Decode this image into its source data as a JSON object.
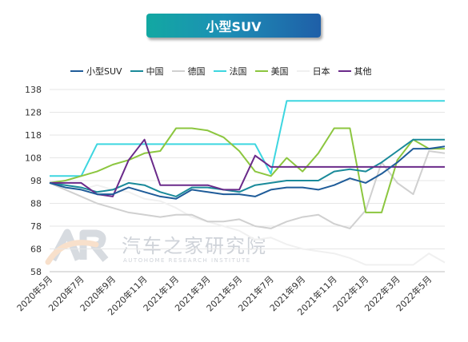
{
  "chart_data": {
    "type": "line",
    "title": "小型SUV",
    "ylim": [
      58,
      138
    ],
    "yticks": [
      58,
      68,
      78,
      88,
      98,
      108,
      118,
      128,
      138
    ],
    "categories": [
      "2020年5月",
      "2020年6月",
      "2020年7月",
      "2020年8月",
      "2020年9月",
      "2020年10月",
      "2020年11月",
      "2020年12月",
      "2021年1月",
      "2021年2月",
      "2021年3月",
      "2021年4月",
      "2021年5月",
      "2021年6月",
      "2021年7月",
      "2021年8月",
      "2021年9月",
      "2021年10月",
      "2021年11月",
      "2021年12月",
      "2022年1月",
      "2022年2月",
      "2022年3月",
      "2022年4月",
      "2022年5月",
      "2022年6月"
    ],
    "xtick_labels": [
      "2020年5月",
      "2020年7月",
      "2020年9月",
      "2020年11月",
      "2021年1月",
      "2021年3月",
      "2021年5月",
      "2021年7月",
      "2021年9月",
      "2021年11月",
      "2022年1月",
      "2022年3月",
      "2022年5月"
    ],
    "xtick_indices": [
      0,
      2,
      4,
      6,
      8,
      10,
      12,
      14,
      16,
      18,
      20,
      22,
      24
    ],
    "legend_position": "top",
    "series": [
      {
        "name": "小型SUV",
        "color": "#1f5c99",
        "values": [
          97,
          95,
          94,
          92,
          92,
          95,
          93,
          91,
          90,
          94,
          93,
          92,
          92,
          91,
          94,
          95,
          95,
          94,
          96,
          99,
          97,
          101,
          106,
          112,
          112,
          113
        ]
      },
      {
        "name": "中国",
        "color": "#1a8a9a",
        "values": [
          97,
          96,
          95,
          93,
          94,
          97,
          96,
          93,
          91,
          95,
          95,
          94,
          93,
          96,
          97,
          98,
          98,
          98,
          102,
          103,
          102,
          106,
          111,
          116,
          116,
          116
        ]
      },
      {
        "name": "德国",
        "color": "#d0d0d0",
        "values": [
          97,
          94,
          91,
          88,
          86,
          84,
          83,
          82,
          83,
          83,
          80,
          80,
          81,
          78,
          77,
          80,
          82,
          83,
          79,
          77,
          85,
          106,
          97,
          92,
          111,
          110
        ]
      },
      {
        "name": "法国",
        "color": "#3dd6e0",
        "values": [
          100,
          100,
          100,
          114,
          114,
          114,
          114,
          114,
          114,
          114,
          114,
          114,
          114,
          114,
          101,
          133,
          133,
          133,
          133,
          133,
          133,
          133,
          133,
          133,
          133,
          133
        ]
      },
      {
        "name": "美国",
        "color": "#8cc63f",
        "values": [
          97,
          98,
          100,
          102,
          105,
          107,
          110,
          111,
          121,
          121,
          120,
          117,
          111,
          102,
          100,
          108,
          102,
          110,
          121,
          121,
          84,
          84,
          107,
          116,
          112,
          112
        ]
      },
      {
        "name": "日本",
        "color": "#f0f0f0",
        "values": [
          98,
          96,
          94,
          96,
          94,
          93,
          90,
          89,
          86,
          82,
          80,
          78,
          76,
          72,
          73,
          70,
          68,
          67,
          66,
          64,
          61,
          61,
          61,
          61,
          66,
          62
        ]
      },
      {
        "name": "其他",
        "color": "#6a2a8a",
        "values": [
          97,
          97,
          97,
          92,
          91,
          107,
          116,
          96,
          96,
          96,
          96,
          94,
          94,
          109,
          104,
          104,
          104,
          104,
          104,
          104,
          104,
          104,
          104,
          104,
          104,
          104
        ]
      }
    ]
  },
  "watermark": {
    "name_cn": "汽车之家研究院",
    "name_en": "AUTOHOME RESEARCH INSTITUTE"
  }
}
